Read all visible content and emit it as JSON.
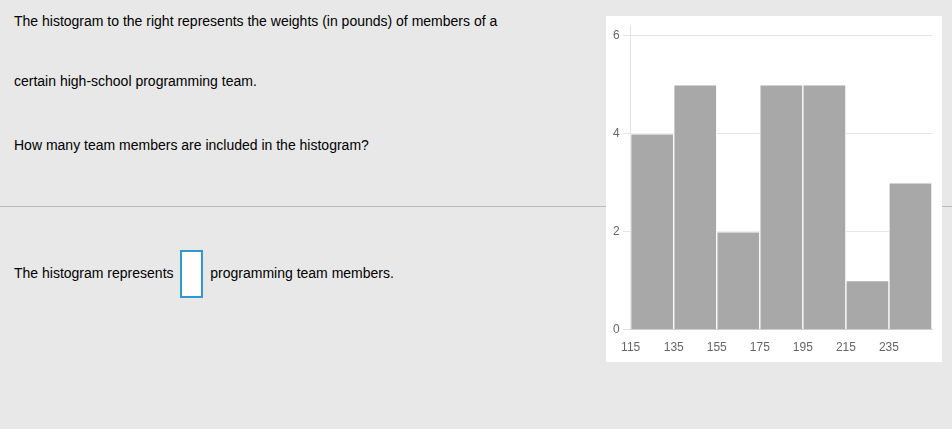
{
  "chart_data": {
    "type": "histogram",
    "bins": [
      115,
      135,
      155,
      175,
      195,
      215,
      235,
      255
    ],
    "values": [
      4,
      5,
      2,
      5,
      5,
      1,
      3
    ],
    "color": "#a8a8a8",
    "xlim": [
      115,
      255
    ],
    "ylim": [
      0,
      6.2
    ],
    "xticks": [
      115,
      135,
      155,
      175,
      195,
      215,
      235
    ],
    "yticks": [
      0,
      2,
      4,
      6
    ],
    "grid": "y",
    "annotations": [
      "The histogram to the right represents the weights (in pounds) of members of a",
      "certain high-school programming team.",
      "How many team members are included in the histogram?",
      "The histogram represents ",
      " programming team members."
    ]
  }
}
